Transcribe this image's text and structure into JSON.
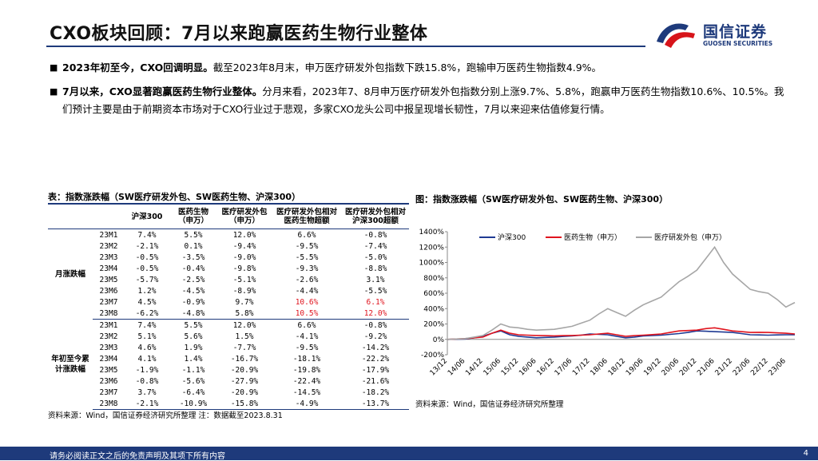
{
  "header": {
    "title": "CXO板块回顾：7月以来跑赢医药生物行业整体",
    "logo_name": "国信证券",
    "logo_en": "GUOSEN SECURITIES"
  },
  "bullets": [
    {
      "bold": "2023年初至今，CXO回调明显。",
      "text": "截至2023年8月末，申万医疗研发外包指数下跌15.8%，跑输申万医药生物指数4.9%。"
    },
    {
      "bold": "7月以来，CXO显著跑赢医药生物行业整体。",
      "text": "分月来看，2023年7、8月申万医疗研发外包指数分别上涨9.7%、5.8%，跑赢申万医药生物指数10.6%、10.5%。我们预计主要是由于前期资本市场对于CXO行业过于悲观，多家CXO龙头公司中报呈现增长韧性，7月以来迎来估值修复行情。"
    }
  ],
  "table": {
    "title": "表：指数涨跌幅（SW医疗研发外包、SW医药生物、沪深300）",
    "columns": [
      "沪深300",
      "医药生物（申万）",
      "医疗研发外包（申万）",
      "医疗研发外包相对医药生物超额",
      "医疗研发外包相对沪深300超额"
    ],
    "groups": [
      {
        "label": "月涨跌幅",
        "rows": [
          [
            "23M1",
            "7.4%",
            "5.5%",
            "12.0%",
            "6.6%",
            "-0.8%"
          ],
          [
            "23M2",
            "-2.1%",
            "0.1%",
            "-9.4%",
            "-9.5%",
            "-7.4%"
          ],
          [
            "23M3",
            "-0.5%",
            "-3.5%",
            "-9.0%",
            "-5.5%",
            "-5.0%"
          ],
          [
            "23M4",
            "-0.5%",
            "-0.4%",
            "-9.8%",
            "-9.3%",
            "-8.8%"
          ],
          [
            "23M5",
            "-5.7%",
            "-2.5%",
            "-5.1%",
            "-2.6%",
            "3.1%"
          ],
          [
            "23M6",
            "1.2%",
            "-4.5%",
            "-8.9%",
            "-4.4%",
            "-5.5%"
          ],
          [
            "23M7",
            "4.5%",
            "-0.9%",
            "9.7%",
            "10.6%",
            "6.1%"
          ],
          [
            "23M8",
            "-6.2%",
            "-4.8%",
            "5.8%",
            "10.5%",
            "12.0%"
          ]
        ]
      },
      {
        "label": "年初至今累计涨跌幅",
        "rows": [
          [
            "23M1",
            "7.4%",
            "5.5%",
            "12.0%",
            "6.6%",
            "-0.8%"
          ],
          [
            "23M2",
            "5.1%",
            "5.6%",
            "1.5%",
            "-4.1%",
            "-9.2%"
          ],
          [
            "23M3",
            "4.6%",
            "1.9%",
            "-7.7%",
            "-9.5%",
            "-14.2%"
          ],
          [
            "23M4",
            "4.1%",
            "1.4%",
            "-16.7%",
            "-18.1%",
            "-22.2%"
          ],
          [
            "23M5",
            "-1.9%",
            "-1.1%",
            "-20.9%",
            "-19.8%",
            "-17.9%"
          ],
          [
            "23M6",
            "-0.8%",
            "-5.6%",
            "-27.9%",
            "-22.4%",
            "-21.6%"
          ],
          [
            "23M7",
            "3.7%",
            "-6.4%",
            "-20.9%",
            "-14.5%",
            "-18.2%"
          ],
          [
            "23M8",
            "-2.1%",
            "-10.9%",
            "-15.8%",
            "-4.9%",
            "-13.7%"
          ]
        ]
      }
    ],
    "source": "资料来源：Wind，国信证券经济研究所整理  注：数据截至2023.8.31"
  },
  "chart_data": {
    "type": "line",
    "title": "图：指数涨跌幅（SW医疗研发外包、SW医药生物、沪深300）",
    "categories": [
      "13/12",
      null,
      "14/06",
      null,
      "14/12",
      null,
      "15/06",
      null,
      "15/12",
      null,
      "16/06",
      null,
      "16/12",
      null,
      "17/06",
      null,
      "17/12",
      null,
      "18/06",
      null,
      "18/12",
      null,
      "19/06",
      null,
      "19/12",
      null,
      "20/06",
      null,
      "20/12",
      null,
      "21/06",
      null,
      "21/12",
      null,
      "22/06",
      null,
      "22/12",
      null,
      "23/06",
      null
    ],
    "series": [
      {
        "name": "沪深300",
        "color": "#1f3a93",
        "values": [
          0,
          2,
          5,
          20,
          40,
          80,
          110,
          60,
          40,
          30,
          20,
          25,
          30,
          38,
          45,
          55,
          70,
          65,
          60,
          40,
          20,
          30,
          45,
          50,
          55,
          65,
          75,
          90,
          110,
          105,
          100,
          95,
          90,
          75,
          60,
          58,
          55,
          58,
          60,
          60
        ]
      },
      {
        "name": "医药生物（申万）",
        "color": "#e0141e",
        "values": [
          0,
          5,
          10,
          20,
          30,
          80,
          120,
          80,
          60,
          55,
          50,
          48,
          45,
          48,
          50,
          55,
          60,
          70,
          80,
          60,
          40,
          48,
          55,
          62,
          70,
          90,
          110,
          115,
          120,
          140,
          150,
          130,
          110,
          100,
          90,
          92,
          90,
          85,
          80,
          70
        ]
      },
      {
        "name": "医疗研发外包（申万）",
        "color": "#a6a6a6",
        "values": [
          0,
          5,
          10,
          30,
          50,
          120,
          200,
          160,
          150,
          130,
          120,
          125,
          130,
          150,
          170,
          210,
          250,
          330,
          400,
          350,
          300,
          380,
          450,
          500,
          550,
          650,
          750,
          820,
          900,
          1050,
          1200,
          1000,
          850,
          750,
          650,
          620,
          600,
          520,
          420,
          480
        ]
      }
    ],
    "ylim": [
      -200,
      1400
    ],
    "yticks": [
      {
        "value": -200,
        "label": "-200%"
      },
      {
        "value": 0,
        "label": "0%"
      },
      {
        "value": 200,
        "label": "200%"
      },
      {
        "value": 400,
        "label": "400%"
      },
      {
        "value": 600,
        "label": "600%"
      },
      {
        "value": 800,
        "label": "800%"
      },
      {
        "value": 1000,
        "label": "1000%"
      },
      {
        "value": 1200,
        "label": "1200%"
      },
      {
        "value": 1400,
        "label": "1400%"
      }
    ],
    "grid": false,
    "legend": "top"
  },
  "chart_source": "资料来源：Wind，国信证券经济研究所整理",
  "footer": {
    "disclaimer": "请务必阅读正文之后的免责声明及其项下所有内容",
    "page": "4"
  }
}
